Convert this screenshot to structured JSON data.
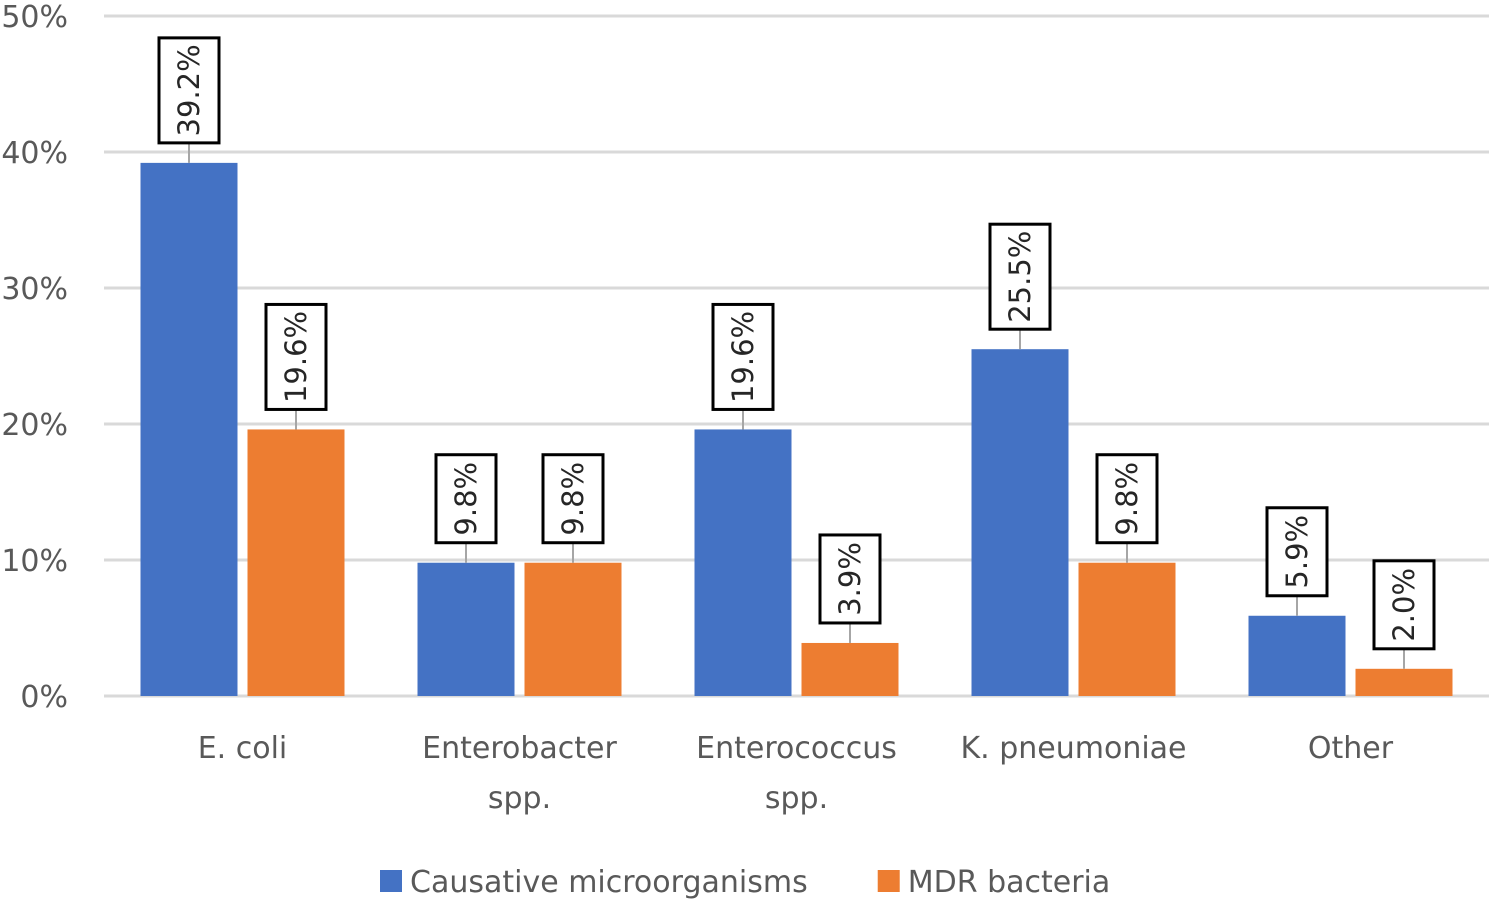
{
  "chart_data": {
    "type": "bar",
    "title": "",
    "xlabel": "",
    "ylabel": "",
    "ylim": [
      0,
      50
    ],
    "yticks": [
      0,
      10,
      20,
      30,
      40,
      50
    ],
    "ytick_labels": [
      "0%",
      "10%",
      "20%",
      "30%",
      "40%",
      "50%"
    ],
    "grid": true,
    "categories": [
      [
        "E. coli"
      ],
      [
        "Enterobacter",
        "spp."
      ],
      [
        "Enterococcus",
        "spp."
      ],
      [
        "K. pneumoniae"
      ],
      [
        "Other"
      ]
    ],
    "series": [
      {
        "name": "Causative microorganisms",
        "color": "#4472C4",
        "values": [
          39.2,
          9.8,
          19.6,
          25.5,
          5.9
        ],
        "labels": [
          "39.2%",
          "9.8%",
          "19.6%",
          "25.5%",
          "5.9%"
        ]
      },
      {
        "name": "MDR bacteria",
        "color": "#ED7D31",
        "values": [
          19.6,
          9.8,
          3.9,
          9.8,
          2.0
        ],
        "labels": [
          "19.6%",
          "9.8%",
          "3.9%",
          "9.8%",
          "2.0%"
        ]
      }
    ],
    "legend_position": "bottom",
    "data_label_orientation": "vertical"
  }
}
